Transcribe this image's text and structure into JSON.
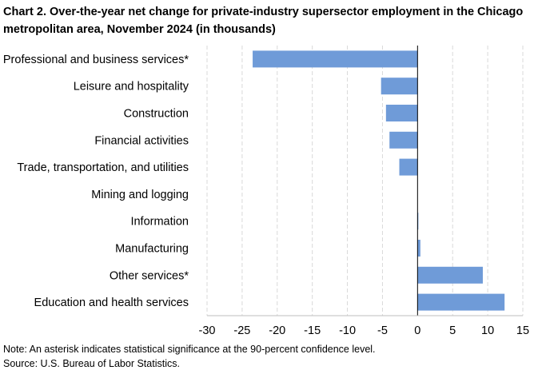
{
  "chart_data": {
    "type": "bar",
    "orientation": "horizontal",
    "title": "Chart 2. Over-the-year net change for private-industry supersector employment in the Chicago metropolitan area, November 2024 (in thousands)",
    "categories": [
      "Professional and business services*",
      "Leisure and hospitality",
      "Construction",
      "Financial activities",
      "Trade, transportation, and utilities",
      "Mining and logging",
      "Information",
      "Manufacturing",
      "Other services*",
      "Education and health services"
    ],
    "values": [
      -23.5,
      -5.2,
      -4.5,
      -4.0,
      -2.6,
      0.0,
      0.1,
      0.4,
      9.3,
      12.4
    ],
    "xlim": [
      -30,
      15
    ],
    "xticks": [
      -30,
      -25,
      -20,
      -15,
      -10,
      -5,
      0,
      5,
      10,
      15
    ],
    "xlabel": "",
    "ylabel": "",
    "grid": "vertical dashed",
    "bar_color": "#6f9bd8"
  },
  "footer": {
    "note": "Note: An asterisk indicates statistical significance at the 90-percent confidence level.",
    "source": "Source: U.S. Bureau of Labor Statistics."
  }
}
